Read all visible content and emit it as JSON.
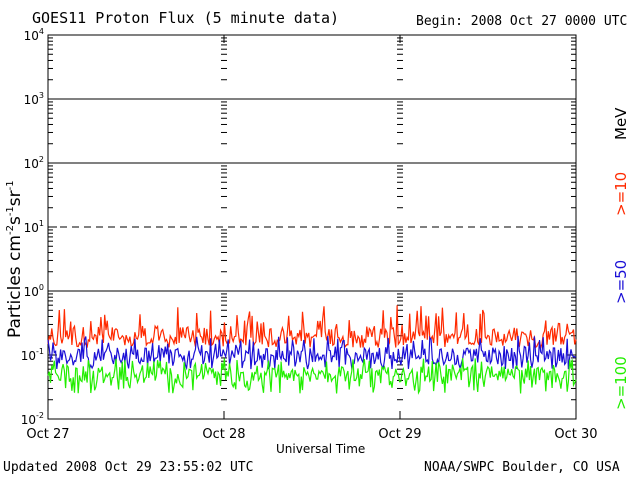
{
  "header": {
    "title": "GOES11 Proton Flux (5 minute data)",
    "begin": "Begin: 2008 Oct 27 0000 UTC"
  },
  "footer": {
    "updated": "Updated 2008 Oct 29 23:55:02 UTC",
    "credit": "NOAA/SWPC Boulder, CO USA"
  },
  "chart_data": {
    "type": "line",
    "title": "GOES11 Proton Flux (5 minute data)",
    "xlabel": "Universal Time",
    "ylabel": "Particles cm-2s-1sr-1",
    "ylabel_parts": {
      "base": "Particles cm",
      "e1": "-2",
      "s": "s",
      "e2": "-1",
      "sr": "sr",
      "e3": "-1"
    },
    "yscale": "log",
    "ylim": [
      0.01,
      10000
    ],
    "xlim": [
      "Oct 27",
      "Oct 30"
    ],
    "x_ticks": [
      "Oct 27",
      "Oct 28",
      "Oct 29",
      "Oct 30"
    ],
    "y_ticks": [
      {
        "base": "10",
        "exp": "4"
      },
      {
        "base": "10",
        "exp": "3"
      },
      {
        "base": "10",
        "exp": "2"
      },
      {
        "base": "10",
        "exp": "1"
      },
      {
        "base": "10",
        "exp": "0"
      },
      {
        "base": "10",
        "exp": "-1"
      },
      {
        "base": "10",
        "exp": "-2"
      }
    ],
    "threshold_lines": {
      "solid": [
        1000,
        100,
        1
      ],
      "dashed": [
        10
      ]
    },
    "units_label": "MeV",
    "series": [
      {
        "name": ">=10",
        "color": "#ff2a00",
        "typical": 0.2,
        "range": [
          0.13,
          0.6
        ]
      },
      {
        "name": ">=50",
        "color": "#1a0fd6",
        "typical": 0.1,
        "range": [
          0.06,
          0.2
        ]
      },
      {
        "name": ">=100",
        "color": "#22ee00",
        "typical": 0.05,
        "range": [
          0.025,
          0.09
        ]
      }
    ]
  }
}
